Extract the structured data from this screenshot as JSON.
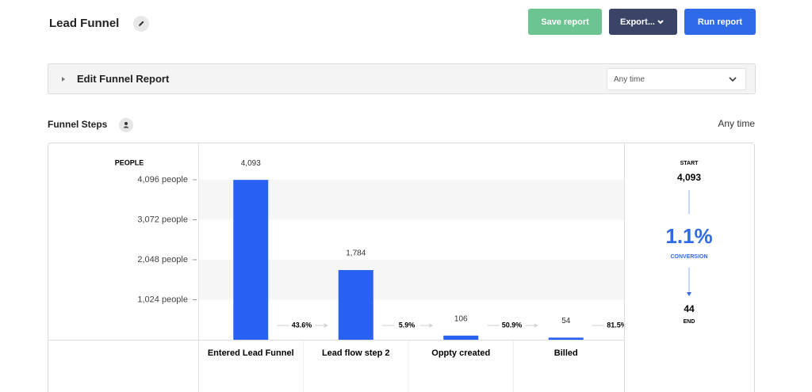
{
  "header": {
    "title": "Lead Funnel",
    "buttons": [
      "Save report",
      "Export...",
      "Run report"
    ]
  },
  "edit_panel": {
    "title": "Edit Funnel Report",
    "time_select": "Any time"
  },
  "section": {
    "title": "Funnel Steps",
    "time_range": "Any time"
  },
  "chart_data": {
    "type": "bar",
    "y_label": "PEOPLE",
    "categories": [
      "Entered Lead Funnel",
      "Lead flow step 2",
      "Oppty created",
      "Billed"
    ],
    "values": [
      4093,
      1784,
      106,
      54
    ],
    "value_labels": [
      "4,093",
      "1,784",
      "106",
      "54"
    ],
    "step_rates": [
      "43.6%",
      "5.9%",
      "50.9%",
      "81.5%"
    ],
    "color": "#2962f2",
    "ylim": [
      0,
      4096
    ],
    "yticks": [
      {
        "value": 1024,
        "label": "1,024 people"
      },
      {
        "value": 2048,
        "label": "2,048 people"
      },
      {
        "value": 3072,
        "label": "3,072 people"
      },
      {
        "value": 4096,
        "label": "4,096 people"
      }
    ],
    "summary": {
      "start_label": "START",
      "start_value": "4,093",
      "conversion": "1.1%",
      "conversion_label": "CONVERSION",
      "end_value": "44",
      "end_label": "END"
    }
  }
}
